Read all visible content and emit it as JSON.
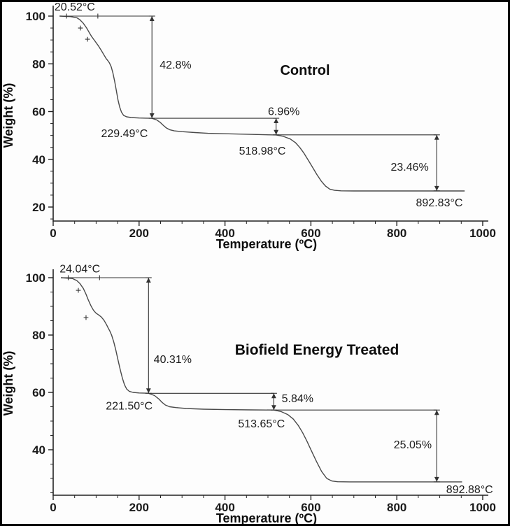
{
  "style": {
    "frame_border_color": "#000000",
    "background": "#fdfdfd",
    "curve_color": "#4a4a4a",
    "axis_color": "#222222",
    "annotation_line_color": "#333333",
    "text_color": "#1a1a1a"
  },
  "chart_data": [
    {
      "type": "line",
      "name": "control",
      "title": "Control",
      "xlabel": "Temperature (ºC)",
      "ylabel": "Weight (%)",
      "x_ticks": [
        0,
        200,
        400,
        600,
        800,
        1000
      ],
      "y_ticks": [
        20,
        40,
        60,
        80,
        100
      ],
      "x_range": [
        0,
        1000
      ],
      "y_range_shown": [
        20,
        100
      ],
      "grid": "off",
      "legend": "none",
      "onset_temp": "20.52°C",
      "steps": [
        {
          "loss_label": "42.8%",
          "temp_label": "229.49°C"
        },
        {
          "loss_label": "6.96%",
          "temp_label": "518.98°C"
        },
        {
          "loss_label": "23.46%",
          "temp_label": "892.83°C"
        }
      ],
      "curve": [
        [
          15,
          100
        ],
        [
          40,
          99.8
        ],
        [
          55,
          99.3
        ],
        [
          62,
          98.5
        ],
        [
          70,
          97
        ],
        [
          78,
          95
        ],
        [
          85,
          92.8
        ],
        [
          90,
          91.3
        ],
        [
          97,
          89.6
        ],
        [
          105,
          87.6
        ],
        [
          112,
          85.6
        ],
        [
          118,
          83.8
        ],
        [
          123,
          82.3
        ],
        [
          127,
          81.4
        ],
        [
          131,
          80.4
        ],
        [
          135,
          78.8
        ],
        [
          139,
          76.3
        ],
        [
          143,
          72.8
        ],
        [
          147,
          68.8
        ],
        [
          151,
          64.8
        ],
        [
          155,
          61.8
        ],
        [
          159,
          59.8
        ],
        [
          164,
          58.4
        ],
        [
          171,
          57.8
        ],
        [
          181,
          57.5
        ],
        [
          200,
          57.3
        ],
        [
          215,
          57.25
        ],
        [
          229.5,
          57.2
        ],
        [
          241,
          56.5
        ],
        [
          249,
          55.5
        ],
        [
          256,
          54.3
        ],
        [
          263,
          53.2
        ],
        [
          271,
          52.4
        ],
        [
          282,
          51.9
        ],
        [
          300,
          51.6
        ],
        [
          330,
          51.2
        ],
        [
          360,
          50.9
        ],
        [
          400,
          50.7
        ],
        [
          450,
          50.5
        ],
        [
          490,
          50.3
        ],
        [
          519,
          50.2
        ],
        [
          536,
          49.6
        ],
        [
          552,
          48.5
        ],
        [
          564,
          47
        ],
        [
          574,
          45
        ],
        [
          584,
          42.5
        ],
        [
          594,
          39.6
        ],
        [
          604,
          36.6
        ],
        [
          614,
          33.6
        ],
        [
          624,
          30.9
        ],
        [
          634,
          28.8
        ],
        [
          644,
          27.5
        ],
        [
          655,
          27
        ],
        [
          670,
          26.8
        ],
        [
          700,
          26.75
        ],
        [
          760,
          26.75
        ],
        [
          830,
          26.75
        ],
        [
          893,
          26.75
        ],
        [
          958,
          26.75
        ]
      ],
      "curve_markers": [
        [
          63.5,
          95
        ],
        [
          80,
          90.3
        ]
      ],
      "annotations": [
        {
          "type": "hline",
          "y": 100,
          "x1": 15,
          "x2": 230,
          "crosses": [
            31,
            104
          ]
        },
        {
          "type": "varrow",
          "x": 230,
          "y1": 100,
          "y2": 57.2
        },
        {
          "type": "hline",
          "y": 57.2,
          "x1": 230,
          "x2": 519,
          "crosses": []
        },
        {
          "type": "varrow",
          "x": 519,
          "y1": 57.2,
          "y2": 50.24
        },
        {
          "type": "hline",
          "y": 50.24,
          "x1": 519,
          "x2": 893,
          "crosses": []
        },
        {
          "type": "varrow",
          "x": 893,
          "y1": 50.24,
          "y2": 26.78
        },
        {
          "type": "label",
          "text": "20.52°C",
          "x": 3,
          "y": 102.3,
          "anchor": "start"
        },
        {
          "type": "label",
          "text": "42.8%",
          "x": 248,
          "y": 78,
          "anchor": "start"
        },
        {
          "type": "label",
          "text": "229.49°C",
          "x": 166,
          "y": 49.3,
          "anchor": "middle"
        },
        {
          "type": "label",
          "text": "6.96%",
          "x": 537,
          "y": 58.6,
          "anchor": "middle"
        },
        {
          "type": "label",
          "text": "518.98°C",
          "x": 487,
          "y": 42,
          "anchor": "middle"
        },
        {
          "type": "label",
          "text": "23.46%",
          "x": 830,
          "y": 35.2,
          "anchor": "middle"
        },
        {
          "type": "label",
          "text": "892.83°C",
          "x": 899,
          "y": 20.3,
          "anchor": "middle"
        }
      ]
    },
    {
      "type": "line",
      "name": "biofield",
      "title": "Biofield Energy Treated",
      "xlabel": "Temperature (ºC)",
      "ylabel": "Weight (%)",
      "x_ticks": [
        0,
        200,
        400,
        600,
        800,
        1000
      ],
      "y_ticks": [
        40,
        60,
        80,
        100
      ],
      "x_range": [
        0,
        1000
      ],
      "y_range_shown": [
        40,
        100
      ],
      "grid": "off",
      "legend": "none",
      "onset_temp": "24.04°C",
      "steps": [
        {
          "loss_label": "40.31%",
          "temp_label": "221.50°C"
        },
        {
          "loss_label": "5.84%",
          "temp_label": "513.65°C"
        },
        {
          "loss_label": "25.05%",
          "temp_label": "892.88°C"
        }
      ],
      "curve": [
        [
          18,
          100
        ],
        [
          45,
          99.7
        ],
        [
          55,
          99
        ],
        [
          62,
          98
        ],
        [
          70,
          96.3
        ],
        [
          76,
          94.4
        ],
        [
          82,
          92.2
        ],
        [
          88,
          90.2
        ],
        [
          94,
          88.6
        ],
        [
          100,
          87.6
        ],
        [
          106,
          87
        ],
        [
          112,
          86.3
        ],
        [
          118,
          85.2
        ],
        [
          124,
          83.7
        ],
        [
          128,
          82.5
        ],
        [
          132,
          81.4
        ],
        [
          136,
          80
        ],
        [
          141,
          77.6
        ],
        [
          146,
          74.7
        ],
        [
          151,
          71.3
        ],
        [
          156,
          68
        ],
        [
          161,
          65
        ],
        [
          166,
          62.7
        ],
        [
          171,
          61.2
        ],
        [
          177,
          60.4
        ],
        [
          186,
          60
        ],
        [
          200,
          59.8
        ],
        [
          221.5,
          59.7
        ],
        [
          236,
          58.9
        ],
        [
          246,
          57.7
        ],
        [
          253,
          56.6
        ],
        [
          261,
          55.6
        ],
        [
          271,
          55
        ],
        [
          286,
          54.7
        ],
        [
          310,
          54.4
        ],
        [
          350,
          54.15
        ],
        [
          400,
          54
        ],
        [
          460,
          53.9
        ],
        [
          513.7,
          53.85
        ],
        [
          531,
          53.3
        ],
        [
          546,
          52.3
        ],
        [
          559,
          50.7
        ],
        [
          571,
          48.4
        ],
        [
          581,
          45.9
        ],
        [
          591,
          42.9
        ],
        [
          601,
          39.7
        ],
        [
          613,
          35.9
        ],
        [
          625,
          32.4
        ],
        [
          637,
          30
        ],
        [
          649,
          29.1
        ],
        [
          662,
          28.85
        ],
        [
          690,
          28.8
        ],
        [
          740,
          28.8
        ],
        [
          810,
          28.8
        ],
        [
          893,
          28.8
        ],
        [
          952,
          28.8
        ]
      ],
      "curve_markers": [
        [
          58.6,
          95.6
        ],
        [
          76.5,
          86.1
        ]
      ],
      "annotations": [
        {
          "type": "hline",
          "y": 100,
          "x1": 18,
          "x2": 222,
          "crosses": [
            35,
            108
          ]
        },
        {
          "type": "varrow",
          "x": 222,
          "y1": 100,
          "y2": 59.69
        },
        {
          "type": "hline",
          "y": 59.69,
          "x1": 222,
          "x2": 513.7,
          "crosses": []
        },
        {
          "type": "varrow",
          "x": 513.7,
          "y1": 59.69,
          "y2": 53.85
        },
        {
          "type": "hline",
          "y": 53.85,
          "x1": 513.7,
          "x2": 893,
          "crosses": []
        },
        {
          "type": "varrow",
          "x": 893,
          "y1": 53.85,
          "y2": 28.8
        },
        {
          "type": "label",
          "text": "24.04°C",
          "x": 15,
          "y": 101.8,
          "anchor": "start"
        },
        {
          "type": "label",
          "text": "40.31%",
          "x": 234,
          "y": 70.2,
          "anchor": "start"
        },
        {
          "type": "label",
          "text": "221.50°C",
          "x": 177,
          "y": 54.0,
          "anchor": "middle"
        },
        {
          "type": "label",
          "text": "5.84%",
          "x": 532,
          "y": 56.6,
          "anchor": "start"
        },
        {
          "type": "label",
          "text": "513.65°C",
          "x": 485,
          "y": 47.8,
          "anchor": "middle"
        },
        {
          "type": "label",
          "text": "25.05%",
          "x": 837,
          "y": 40.5,
          "anchor": "middle"
        },
        {
          "type": "label",
          "text": "892.88°C",
          "x": 915,
          "y": 24.9,
          "anchor": "start"
        }
      ]
    }
  ]
}
